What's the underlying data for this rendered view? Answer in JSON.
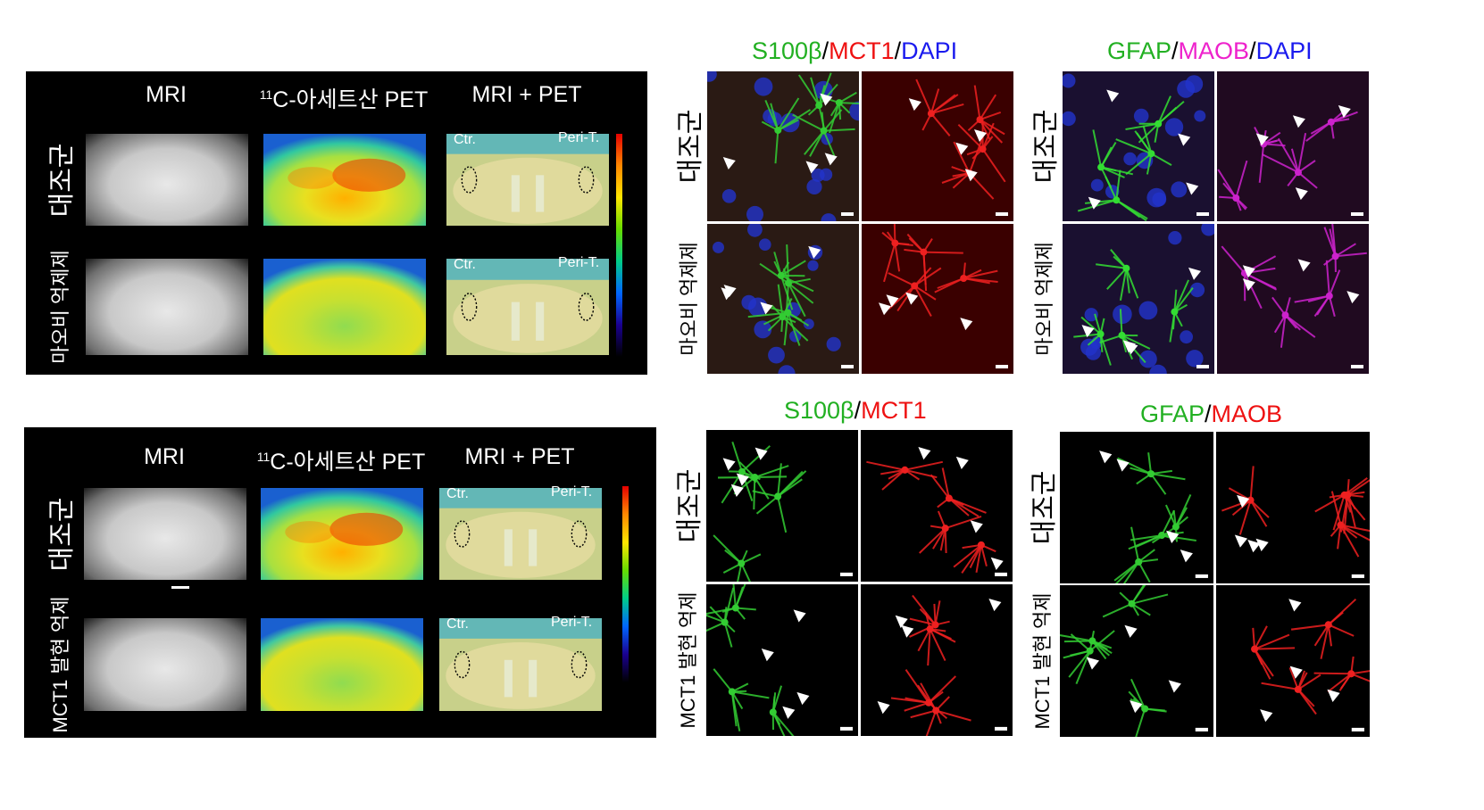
{
  "mri_panels": [
    {
      "col_headers": {
        "mri": "MRI",
        "pet_sup": "11",
        "pet": "C-아세트산 PET",
        "overlay": "MRI + PET"
      },
      "rows": [
        {
          "label": "대조군",
          "label_size": "big",
          "ctr": "Ctr.",
          "peri": "Peri-T."
        },
        {
          "label": "마오비 억제제",
          "label_size": "small",
          "ctr": "Ctr.",
          "peri": "Peri-T."
        }
      ]
    },
    {
      "col_headers": {
        "mri": "MRI",
        "pet_sup": "11",
        "pet": "C-아세트산 PET",
        "overlay": "MRI + PET"
      },
      "rows": [
        {
          "label": "대조군",
          "label_size": "big",
          "ctr": "Ctr.",
          "peri": "Peri-T."
        },
        {
          "label": "MCT1 발현 억제",
          "label_size": "small",
          "ctr": "Ctr.",
          "peri": "Peri-T."
        }
      ]
    }
  ],
  "micro_panels": [
    {
      "title": [
        {
          "text": "S100β",
          "color": "#22b022"
        },
        {
          "text": "/",
          "color": "#000000"
        },
        {
          "text": "MCT1",
          "color": "#ee1111"
        },
        {
          "text": "/",
          "color": "#000000"
        },
        {
          "text": "DAPI",
          "color": "#1a1aee"
        }
      ],
      "rows": [
        {
          "label": "대조군",
          "label_size": "big"
        },
        {
          "label": "마오비 억제제",
          "label_size": "small"
        }
      ],
      "left_color": "#33cc33",
      "right_color": "#ee2020",
      "bg_left": "#2a1a14",
      "bg_right": "#3a0000",
      "dapi": true
    },
    {
      "title": [
        {
          "text": "GFAP",
          "color": "#22b022"
        },
        {
          "text": "/",
          "color": "#000000"
        },
        {
          "text": "MAOB",
          "color": "#ee22cc"
        },
        {
          "text": "/",
          "color": "#000000"
        },
        {
          "text": "DAPI",
          "color": "#1a1aee"
        }
      ],
      "rows": [
        {
          "label": "대조군",
          "label_size": "big"
        },
        {
          "label": "마오비 억제제",
          "label_size": "small"
        }
      ],
      "left_color": "#33dd33",
      "right_color": "#cc22cc",
      "bg_left": "#1a1030",
      "bg_right": "#200a20",
      "dapi": true
    },
    {
      "title": [
        {
          "text": "S100β",
          "color": "#22b022"
        },
        {
          "text": "/",
          "color": "#000000"
        },
        {
          "text": "MCT1",
          "color": "#ee1111"
        }
      ],
      "rows": [
        {
          "label": "대조군",
          "label_size": "big"
        },
        {
          "label": "MCT1 발현 억제",
          "label_size": "small"
        }
      ],
      "left_color": "#33cc33",
      "right_color": "#ee2020",
      "bg_left": "#000000",
      "bg_right": "#000000",
      "dapi": false
    },
    {
      "title": [
        {
          "text": "GFAP",
          "color": "#22b022"
        },
        {
          "text": "/",
          "color": "#000000"
        },
        {
          "text": "MAOB",
          "color": "#ee1111"
        }
      ],
      "rows": [
        {
          "label": "대조군",
          "label_size": "big"
        },
        {
          "label": "MCT1 발현 억제",
          "label_size": "small"
        }
      ],
      "left_color": "#33cc33",
      "right_color": "#ee2020",
      "bg_left": "#000000",
      "bg_right": "#000000",
      "dapi": false
    }
  ]
}
